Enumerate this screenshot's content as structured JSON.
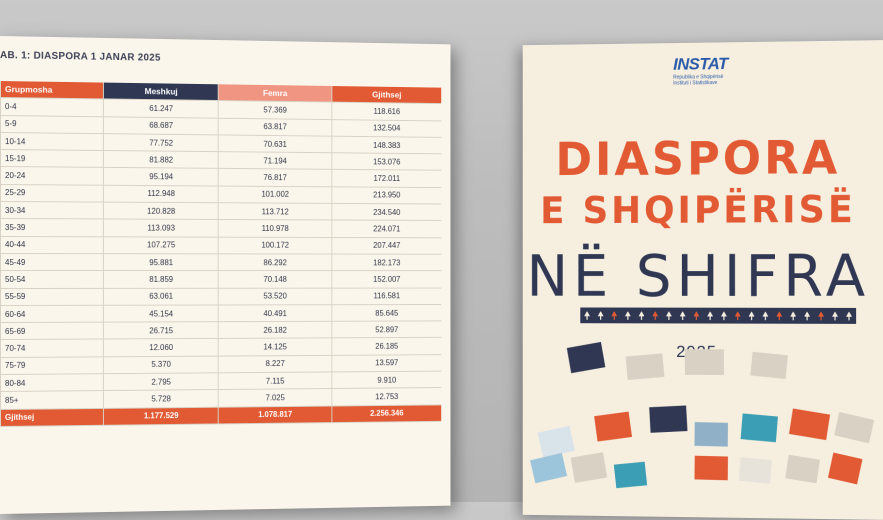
{
  "table": {
    "title": "AB. 1:  DIASPORA 1 JANAR 2025",
    "headers": [
      "Grupmosha",
      "Meshkuj",
      "Femra",
      "Gjithsej"
    ],
    "rows": [
      [
        "0-4",
        "61.247",
        "57.369",
        "118.616"
      ],
      [
        "5-9",
        "68.687",
        "63.817",
        "132.504"
      ],
      [
        "10-14",
        "77.752",
        "70.631",
        "148.383"
      ],
      [
        "15-19",
        "81.882",
        "71.194",
        "153.076"
      ],
      [
        "20-24",
        "95.194",
        "76.817",
        "172.011"
      ],
      [
        "25-29",
        "112.948",
        "101.002",
        "213.950"
      ],
      [
        "30-34",
        "120.828",
        "113.712",
        "234.540"
      ],
      [
        "35-39",
        "113.093",
        "110.978",
        "224.071"
      ],
      [
        "40-44",
        "107.275",
        "100.172",
        "207.447"
      ],
      [
        "45-49",
        "95.881",
        "86.292",
        "182.173"
      ],
      [
        "50-54",
        "81.859",
        "70.148",
        "152.007"
      ],
      [
        "55-59",
        "63.061",
        "53.520",
        "116.581"
      ],
      [
        "60-64",
        "45.154",
        "40.491",
        "85.645"
      ],
      [
        "65-69",
        "26.715",
        "26.182",
        "52.897"
      ],
      [
        "70-74",
        "12.060",
        "14.125",
        "26.185"
      ],
      [
        "75-79",
        "5.370",
        "8.227",
        "13.597"
      ],
      [
        "80-84",
        "2.795",
        "7.115",
        "9.910"
      ],
      [
        "85+",
        "5.728",
        "7.025",
        "12.753"
      ]
    ],
    "total": [
      "Gjithsej",
      "1.177.529",
      "1.078.817",
      "2.256.346"
    ]
  },
  "cover": {
    "logo": "INSTAT",
    "logo_sub1": "Republika e Shqipërisë",
    "logo_sub2": "Instituti i Statistikave",
    "line1": "DIASPORA",
    "line2": "E SHQIPËRISË",
    "line3": "NË SHIFRA",
    "year": "2025"
  },
  "colors": {
    "orange": "#e15a34",
    "navy": "#2f3753",
    "salmon": "#ef9581",
    "paper": "#fbf6ec"
  }
}
